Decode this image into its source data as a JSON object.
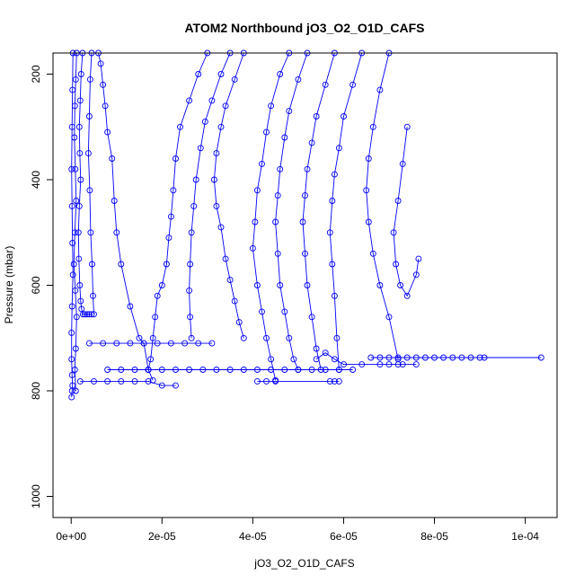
{
  "chart_data": {
    "type": "line",
    "title": "ATOM2 Northbound jO3_O2_O1D_CAFS",
    "xlabel": "jO3_O2_O1D_CAFS",
    "ylabel": "Pressure (mbar)",
    "xlim": [
      -4e-06,
      0.000107
    ],
    "ylim": [
      1040,
      160
    ],
    "y_reversed": true,
    "x_ticks": [
      {
        "value": 0,
        "label": "0e+00"
      },
      {
        "value": 2e-05,
        "label": "2e-05"
      },
      {
        "value": 4e-05,
        "label": "4e-05"
      },
      {
        "value": 6e-05,
        "label": "6e-05"
      },
      {
        "value": 8e-05,
        "label": "8e-05"
      },
      {
        "value": 0.0001,
        "label": "1e-04"
      }
    ],
    "y_ticks": [
      {
        "value": 200,
        "label": "200"
      },
      {
        "value": 400,
        "label": "400"
      },
      {
        "value": 600,
        "label": "600"
      },
      {
        "value": 800,
        "label": "800"
      },
      {
        "value": 1000,
        "label": "1000"
      }
    ],
    "grid": false,
    "legend": "none",
    "series_color": "#0000ff",
    "marker": "open-circle",
    "series": [
      {
        "x": [
          4e-07,
          3e-07,
          2e-07,
          1e-07,
          2e-07,
          3e-07,
          4e-07,
          2e-07,
          1e-07,
          1e-07,
          2e-07,
          3e-07,
          2e-07,
          1e-07
        ],
        "y": [
          160,
          230,
          300,
          380,
          450,
          520,
          580,
          640,
          690,
          740,
          770,
          790,
          800,
          812
        ]
      },
      {
        "x": [
          1.2e-06,
          1e-06,
          8e-07,
          7e-07,
          9e-07,
          1.1e-06,
          8e-07,
          6e-07,
          9e-07,
          1.2e-06,
          1e-06,
          8e-07,
          1e-06
        ],
        "y": [
          160,
          210,
          260,
          320,
          380,
          440,
          500,
          560,
          610,
          660,
          720,
          760,
          800
        ]
      },
      {
        "x": [
          2.5e-06,
          2.2e-06,
          2e-06,
          1.8e-06,
          1.9e-06,
          2.1e-06,
          1.8e-06,
          1.6e-06,
          1.7e-06,
          1.9e-06,
          2.1e-06,
          2.3e-06,
          2.6e-06,
          3e-06,
          3.5e-06,
          4e-06,
          4.5e-06
        ],
        "y": [
          160,
          200,
          250,
          300,
          350,
          400,
          450,
          500,
          550,
          600,
          630,
          645,
          655,
          655,
          655,
          655,
          655
        ]
      },
      {
        "x": [
          4.5e-06,
          4.2e-06,
          4e-06,
          3.8e-06,
          4.1e-06,
          4.3e-06,
          4.6e-06,
          4.8e-06,
          5e-06
        ],
        "y": [
          160,
          210,
          280,
          350,
          420,
          500,
          560,
          620,
          655
        ]
      },
      {
        "x": [
          6e-06,
          6.5e-06,
          7e-06,
          7.5e-06,
          8e-06,
          9e-06,
          9.5e-06,
          1e-05,
          1.1e-05,
          1.3e-05,
          1.5e-05,
          1.6e-05,
          1.7e-05,
          1.8e-05
        ],
        "y": [
          160,
          180,
          220,
          260,
          310,
          360,
          440,
          500,
          560,
          640,
          700,
          710,
          760,
          780
        ]
      },
      {
        "x": [
          3e-05,
          2.8e-05,
          2.6e-05,
          2.4e-05,
          2.3e-05,
          2.25e-05,
          2.2e-05,
          2.15e-05,
          2.1e-05,
          2e-05,
          1.9e-05,
          1.85e-05,
          1.8e-05,
          1.75e-05,
          1.7e-05
        ],
        "y": [
          160,
          200,
          250,
          300,
          360,
          420,
          470,
          510,
          560,
          600,
          620,
          660,
          700,
          740,
          760
        ]
      },
      {
        "x": [
          3.5e-05,
          3.3e-05,
          3.1e-05,
          2.95e-05,
          2.85e-05,
          2.75e-05,
          2.7e-05,
          2.65e-05,
          2.62e-05,
          2.6e-05,
          2.62e-05,
          2.65e-05
        ],
        "y": [
          160,
          200,
          250,
          290,
          340,
          400,
          450,
          500,
          560,
          610,
          660,
          700
        ]
      },
      {
        "x": [
          3.8e-05,
          3.6e-05,
          3.4e-05,
          3.3e-05,
          3.2e-05,
          3.15e-05,
          3.2e-05,
          3.3e-05,
          3.4e-05,
          3.5e-05,
          3.6e-05,
          3.7e-05,
          3.8e-05
        ],
        "y": [
          160,
          210,
          260,
          300,
          350,
          400,
          450,
          490,
          550,
          590,
          630,
          670,
          700
        ]
      },
      {
        "x": [
          4.8e-05,
          4.6e-05,
          4.4e-05,
          4.3e-05,
          4.2e-05,
          4.1e-05,
          4.05e-05,
          4e-05,
          4.1e-05,
          4.2e-05,
          4.3e-05,
          4.4e-05,
          4.5e-05
        ],
        "y": [
          160,
          200,
          260,
          310,
          370,
          420,
          480,
          530,
          600,
          650,
          700,
          740,
          780
        ]
      },
      {
        "x": [
          5.2e-05,
          5e-05,
          4.8e-05,
          4.7e-05,
          4.6e-05,
          4.55e-05,
          4.5e-05,
          4.55e-05,
          4.6e-05,
          4.7e-05,
          4.8e-05,
          4.9e-05,
          5e-05
        ],
        "y": [
          160,
          210,
          270,
          320,
          380,
          430,
          480,
          540,
          600,
          650,
          700,
          740,
          760
        ]
      },
      {
        "x": [
          5.8e-05,
          5.6e-05,
          5.4e-05,
          5.3e-05,
          5.2e-05,
          5.15e-05,
          5.1e-05,
          5.15e-05,
          5.2e-05,
          5.3e-05,
          5.4e-05,
          5.5e-05
        ],
        "y": [
          160,
          220,
          280,
          330,
          380,
          430,
          480,
          540,
          600,
          660,
          720,
          760
        ]
      },
      {
        "x": [
          6.4e-05,
          6.2e-05,
          6e-05,
          5.9e-05,
          5.8e-05,
          5.75e-05,
          5.7e-05,
          5.75e-05,
          5.8e-05,
          5.85e-05,
          5.9e-05
        ],
        "y": [
          160,
          220,
          280,
          340,
          390,
          440,
          500,
          560,
          620,
          700,
          760
        ]
      },
      {
        "x": [
          7e-05,
          6.8e-05,
          6.65e-05,
          6.55e-05,
          6.5e-05,
          6.55e-05,
          6.65e-05,
          6.8e-05,
          7e-05,
          7.2e-05
        ],
        "y": [
          160,
          230,
          300,
          360,
          420,
          480,
          540,
          600,
          660,
          740
        ]
      },
      {
        "x": [
          7.4e-05,
          7.3e-05,
          7.2e-05,
          7.1e-05,
          7.15e-05,
          7.25e-05,
          7.4e-05,
          7.6e-05,
          7.65e-05
        ],
        "y": [
          300,
          370,
          440,
          500,
          560,
          600,
          620,
          580,
          550
        ]
      },
      {
        "x": [
          6.6e-05,
          6.8e-05,
          7e-05,
          7.2e-05,
          7.4e-05,
          7.6e-05,
          7.8e-05,
          8e-05,
          8.2e-05,
          8.4e-05,
          8.6e-05,
          8.8e-05,
          9e-05,
          9.1e-05,
          0.0001035
        ],
        "y": [
          737,
          737,
          737,
          737,
          737,
          737,
          737,
          737,
          737,
          737,
          737,
          737,
          737,
          737,
          737
        ]
      },
      {
        "x": [
          4e-06,
          7e-06,
          1e-05,
          1.3e-05,
          1.6e-05,
          1.9e-05,
          2.2e-05,
          2.5e-05,
          2.8e-05,
          3.1e-05
        ],
        "y": [
          710,
          710,
          710,
          710,
          710,
          710,
          710,
          710,
          710,
          710
        ]
      },
      {
        "x": [
          8e-06,
          1.1e-05,
          1.4e-05,
          1.7e-05,
          2e-05,
          2.3e-05,
          2.6e-05,
          2.9e-05,
          3.2e-05,
          3.5e-05,
          3.8e-05,
          4.1e-05,
          4.4e-05,
          4.7e-05,
          5e-05,
          5.3e-05,
          5.6e-05,
          5.9e-05,
          6.2e-05
        ],
        "y": [
          760,
          760,
          760,
          760,
          760,
          760,
          760,
          760,
          760,
          760,
          760,
          760,
          760,
          760,
          760,
          760,
          760,
          760,
          760
        ]
      },
      {
        "x": [
          2e-06,
          5e-06,
          8e-06,
          1.1e-05,
          1.4e-05,
          1.7e-05,
          2e-05,
          2.3e-05
        ],
        "y": [
          782,
          782,
          782,
          782,
          782,
          782,
          790,
          790
        ]
      },
      {
        "x": [
          4.1e-05,
          4.3e-05,
          4.5e-05,
          5.7e-05,
          5.8e-05,
          5.9e-05
        ],
        "y": [
          782,
          782,
          782,
          782,
          782,
          782
        ]
      },
      {
        "x": [
          5.4e-05,
          5.6e-05,
          5.8e-05,
          6e-05,
          6.4e-05,
          6.8e-05,
          7e-05,
          7.2e-05,
          7.3e-05,
          7.6e-05
        ],
        "y": [
          740,
          728,
          740,
          750,
          750,
          750,
          750,
          750,
          750,
          750
        ]
      }
    ]
  }
}
